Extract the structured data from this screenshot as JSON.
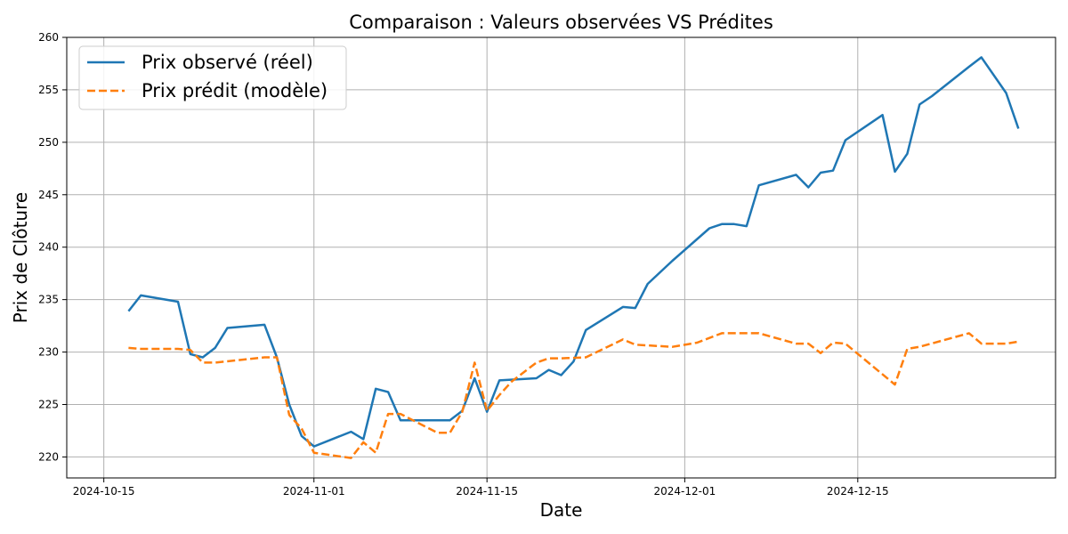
{
  "chart_data": {
    "type": "line",
    "title": "Comparaison : Valeurs observées VS Prédites",
    "xlabel": "Date",
    "ylabel": "Prix de Clôture",
    "xlim": [
      "2024-10-12",
      "2024-12-31"
    ],
    "ylim": [
      218,
      260
    ],
    "x_ticks": [
      "2024-10-15",
      "2024-11-01",
      "2024-11-15",
      "2024-12-01",
      "2024-12-15"
    ],
    "y_ticks": [
      220,
      225,
      230,
      235,
      240,
      245,
      250,
      255,
      260
    ],
    "grid": true,
    "legend_position": "upper-left",
    "series": [
      {
        "name": "Prix observé (réel)",
        "color": "#1f77b4",
        "style": "solid",
        "points": [
          [
            "2024-10-17",
            233.9
          ],
          [
            "2024-10-18",
            235.4
          ],
          [
            "2024-10-21",
            234.8
          ],
          [
            "2024-10-22",
            229.8
          ],
          [
            "2024-10-23",
            229.5
          ],
          [
            "2024-10-24",
            230.4
          ],
          [
            "2024-10-25",
            232.3
          ],
          [
            "2024-10-28",
            232.6
          ],
          [
            "2024-10-29",
            229.5
          ],
          [
            "2024-10-30",
            225.0
          ],
          [
            "2024-10-31",
            222.0
          ],
          [
            "2024-11-01",
            221.0
          ],
          [
            "2024-11-04",
            222.4
          ],
          [
            "2024-11-05",
            221.7
          ],
          [
            "2024-11-06",
            226.5
          ],
          [
            "2024-11-07",
            226.2
          ],
          [
            "2024-11-08",
            223.5
          ],
          [
            "2024-11-11",
            223.5
          ],
          [
            "2024-11-12",
            223.5
          ],
          [
            "2024-11-13",
            224.4
          ],
          [
            "2024-11-14",
            227.5
          ],
          [
            "2024-11-15",
            224.3
          ],
          [
            "2024-11-16",
            227.3
          ],
          [
            "2024-11-19",
            227.5
          ],
          [
            "2024-11-20",
            228.3
          ],
          [
            "2024-11-21",
            227.8
          ],
          [
            "2024-11-22",
            229.1
          ],
          [
            "2024-11-23",
            232.1
          ],
          [
            "2024-11-26",
            234.3
          ],
          [
            "2024-11-27",
            234.2
          ],
          [
            "2024-11-28",
            236.5
          ],
          [
            "2024-11-30",
            238.7
          ],
          [
            "2024-12-03",
            241.8
          ],
          [
            "2024-12-04",
            242.2
          ],
          [
            "2024-12-05",
            242.2
          ],
          [
            "2024-12-06",
            242.0
          ],
          [
            "2024-12-07",
            245.9
          ],
          [
            "2024-12-10",
            246.9
          ],
          [
            "2024-12-11",
            245.7
          ],
          [
            "2024-12-12",
            247.1
          ],
          [
            "2024-12-13",
            247.3
          ],
          [
            "2024-12-14",
            250.2
          ],
          [
            "2024-12-17",
            252.6
          ],
          [
            "2024-12-18",
            247.2
          ],
          [
            "2024-12-19",
            248.9
          ],
          [
            "2024-12-20",
            253.6
          ],
          [
            "2024-12-21",
            254.4
          ],
          [
            "2024-12-24",
            257.2
          ],
          [
            "2024-12-25",
            258.1
          ],
          [
            "2024-12-27",
            254.7
          ],
          [
            "2024-12-28",
            251.3
          ]
        ]
      },
      {
        "name": "Prix prédit (modèle)",
        "color": "#ff7f0e",
        "style": "dashed",
        "points": [
          [
            "2024-10-17",
            230.4
          ],
          [
            "2024-10-18",
            230.3
          ],
          [
            "2024-10-21",
            230.3
          ],
          [
            "2024-10-22",
            230.2
          ],
          [
            "2024-10-23",
            229.0
          ],
          [
            "2024-10-24",
            229.0
          ],
          [
            "2024-10-28",
            229.5
          ],
          [
            "2024-10-29",
            229.5
          ],
          [
            "2024-10-30",
            224.0
          ],
          [
            "2024-10-31",
            222.7
          ],
          [
            "2024-11-01",
            220.4
          ],
          [
            "2024-11-04",
            219.9
          ],
          [
            "2024-11-05",
            221.4
          ],
          [
            "2024-11-06",
            220.4
          ],
          [
            "2024-11-07",
            224.1
          ],
          [
            "2024-11-08",
            224.1
          ],
          [
            "2024-11-11",
            222.3
          ],
          [
            "2024-11-12",
            222.3
          ],
          [
            "2024-11-13",
            224.3
          ],
          [
            "2024-11-14",
            229.0
          ],
          [
            "2024-11-15",
            224.4
          ],
          [
            "2024-11-16",
            225.9
          ],
          [
            "2024-11-17",
            227.2
          ],
          [
            "2024-11-19",
            229.0
          ],
          [
            "2024-11-20",
            229.4
          ],
          [
            "2024-11-21",
            229.4
          ],
          [
            "2024-11-23",
            229.5
          ],
          [
            "2024-11-26",
            231.2
          ],
          [
            "2024-11-27",
            230.7
          ],
          [
            "2024-11-30",
            230.5
          ],
          [
            "2024-12-02",
            230.9
          ],
          [
            "2024-12-04",
            231.8
          ],
          [
            "2024-12-07",
            231.8
          ],
          [
            "2024-12-10",
            230.8
          ],
          [
            "2024-12-11",
            230.8
          ],
          [
            "2024-12-12",
            229.9
          ],
          [
            "2024-12-13",
            230.9
          ],
          [
            "2024-12-14",
            230.8
          ],
          [
            "2024-12-18",
            226.9
          ],
          [
            "2024-12-19",
            230.3
          ],
          [
            "2024-12-20",
            230.5
          ],
          [
            "2024-12-24",
            231.8
          ],
          [
            "2024-12-25",
            230.8
          ],
          [
            "2024-12-27",
            230.8
          ],
          [
            "2024-12-28",
            231.0
          ]
        ]
      }
    ]
  }
}
